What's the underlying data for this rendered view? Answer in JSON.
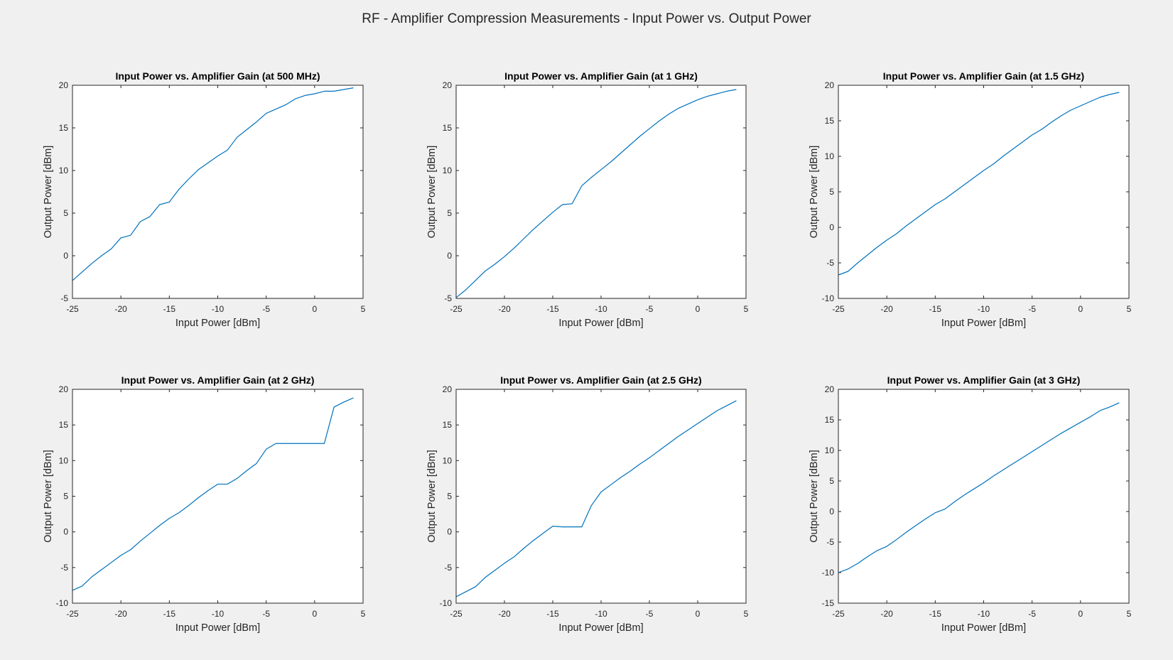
{
  "figure": {
    "suptitle": "RF - Amplifier Compression Measurements - Input Power vs. Output Power",
    "line_color": "#0072BD"
  },
  "chart_data": [
    {
      "type": "line",
      "title": "Input Power vs. Amplifier Gain (at 500 MHz)",
      "xlabel": "Input Power [dBm]",
      "ylabel": "Output Power [dBm]",
      "xlim": [
        -25,
        5
      ],
      "ylim": [
        -5,
        20
      ],
      "xticks": [
        -25,
        -20,
        -15,
        -10,
        -5,
        0,
        5
      ],
      "yticks": [
        -5,
        0,
        5,
        10,
        15,
        20
      ],
      "x": [
        -25,
        -24,
        -23,
        -22,
        -21,
        -20,
        -19,
        -18,
        -17,
        -16,
        -15,
        -14,
        -13,
        -12,
        -11,
        -10,
        -9,
        -8,
        -7,
        -6,
        -5,
        -4,
        -3,
        -2,
        -1,
        0,
        1,
        2,
        3,
        4
      ],
      "y": [
        -2.9,
        -1.9,
        -0.9,
        0.0,
        0.8,
        2.1,
        2.4,
        4.0,
        4.6,
        6.0,
        6.3,
        7.8,
        9.0,
        10.1,
        10.9,
        11.7,
        12.4,
        13.9,
        14.8,
        15.7,
        16.7,
        17.2,
        17.7,
        18.4,
        18.8,
        19.0,
        19.3,
        19.3,
        19.5,
        19.7
      ]
    },
    {
      "type": "line",
      "title": "Input Power vs. Amplifier Gain (at 1 GHz)",
      "xlabel": "Input Power [dBm]",
      "ylabel": "Output Power [dBm]",
      "xlim": [
        -25,
        5
      ],
      "ylim": [
        -5,
        20
      ],
      "xticks": [
        -25,
        -20,
        -15,
        -10,
        -5,
        0,
        5
      ],
      "yticks": [
        -5,
        0,
        5,
        10,
        15,
        20
      ],
      "x": [
        -25,
        -24,
        -23,
        -22,
        -21,
        -20,
        -19,
        -18,
        -17,
        -16,
        -15,
        -14,
        -13,
        -12,
        -11,
        -10,
        -9,
        -8,
        -7,
        -6,
        -5,
        -4,
        -3,
        -2,
        -1,
        0,
        1,
        2,
        3,
        4
      ],
      "y": [
        -4.9,
        -4.0,
        -2.9,
        -1.8,
        -1.0,
        -0.1,
        0.9,
        2.0,
        3.1,
        4.1,
        5.1,
        6.0,
        6.1,
        8.2,
        9.2,
        10.1,
        11.0,
        12.0,
        13.0,
        14.0,
        14.9,
        15.8,
        16.6,
        17.3,
        17.8,
        18.3,
        18.7,
        19.0,
        19.3,
        19.5
      ]
    },
    {
      "type": "line",
      "title": "Input Power vs. Amplifier Gain (at 1.5 GHz)",
      "xlabel": "Input Power [dBm]",
      "ylabel": "Output Power [dBm]",
      "xlim": [
        -25,
        5
      ],
      "ylim": [
        -10,
        20
      ],
      "xticks": [
        -25,
        -20,
        -15,
        -10,
        -5,
        0,
        5
      ],
      "yticks": [
        -10,
        -5,
        0,
        5,
        10,
        15,
        20
      ],
      "x": [
        -25,
        -24,
        -23,
        -22,
        -21,
        -20,
        -19,
        -18,
        -17,
        -16,
        -15,
        -14,
        -13,
        -12,
        -11,
        -10,
        -9,
        -8,
        -7,
        -6,
        -5,
        -4,
        -3,
        -2,
        -1,
        0,
        1,
        2,
        3,
        4
      ],
      "y": [
        -6.7,
        -6.2,
        -5.0,
        -3.9,
        -2.8,
        -1.8,
        -0.9,
        0.2,
        1.2,
        2.2,
        3.2,
        4.0,
        5.0,
        6.0,
        7.0,
        8.0,
        8.9,
        10.0,
        11.0,
        12.0,
        13.0,
        13.8,
        14.8,
        15.7,
        16.5,
        17.1,
        17.7,
        18.3,
        18.7,
        19.0
      ]
    },
    {
      "type": "line",
      "title": "Input Power vs. Amplifier Gain (at 2 GHz)",
      "xlabel": "Input Power [dBm]",
      "ylabel": "Output Power [dBm]",
      "xlim": [
        -25,
        5
      ],
      "ylim": [
        -10,
        20
      ],
      "xticks": [
        -25,
        -20,
        -15,
        -10,
        -5,
        0,
        5
      ],
      "yticks": [
        -10,
        -5,
        0,
        5,
        10,
        15,
        20
      ],
      "x": [
        -25,
        -24,
        -23,
        -22,
        -21,
        -20,
        -19,
        -18,
        -17,
        -16,
        -15,
        -14,
        -13,
        -12,
        -11,
        -10,
        -9,
        -8,
        -7,
        -6,
        -5,
        -4,
        -3,
        -2,
        -1,
        0,
        1,
        2,
        3,
        4
      ],
      "y": [
        -8.2,
        -7.6,
        -6.3,
        -5.3,
        -4.3,
        -3.3,
        -2.5,
        -1.3,
        -0.2,
        0.9,
        1.9,
        2.7,
        3.7,
        4.8,
        5.8,
        6.7,
        6.7,
        7.5,
        8.6,
        9.6,
        11.6,
        12.4,
        12.4,
        12.4,
        12.4,
        12.4,
        12.4,
        17.5,
        18.2,
        18.8
      ]
    },
    {
      "type": "line",
      "title": "Input Power vs. Amplifier Gain (at 2.5 GHz)",
      "xlabel": "Input Power [dBm]",
      "ylabel": "Output Power [dBm]",
      "xlim": [
        -25,
        5
      ],
      "ylim": [
        -10,
        20
      ],
      "xticks": [
        -25,
        -20,
        -15,
        -10,
        -5,
        0,
        5
      ],
      "yticks": [
        -10,
        -5,
        0,
        5,
        10,
        15,
        20
      ],
      "x": [
        -25,
        -24,
        -23,
        -22,
        -21,
        -20,
        -19,
        -18,
        -17,
        -16,
        -15,
        -14,
        -13,
        -12,
        -11,
        -10,
        -9,
        -8,
        -7,
        -6,
        -5,
        -4,
        -3,
        -2,
        -1,
        0,
        1,
        2,
        3,
        4
      ],
      "y": [
        -9.1,
        -8.4,
        -7.7,
        -6.4,
        -5.4,
        -4.4,
        -3.5,
        -2.3,
        -1.2,
        -0.2,
        0.8,
        0.7,
        0.7,
        0.7,
        3.7,
        5.6,
        6.6,
        7.6,
        8.5,
        9.5,
        10.4,
        11.4,
        12.4,
        13.4,
        14.3,
        15.2,
        16.1,
        17.0,
        17.7,
        18.4
      ]
    },
    {
      "type": "line",
      "title": "Input Power vs. Amplifier Gain (at 3 GHz)",
      "xlabel": "Input Power [dBm]",
      "ylabel": "Output Power [dBm]",
      "xlim": [
        -25,
        5
      ],
      "ylim": [
        -15,
        20
      ],
      "xticks": [
        -25,
        -20,
        -15,
        -10,
        -5,
        0,
        5
      ],
      "yticks": [
        -15,
        -10,
        -5,
        0,
        5,
        10,
        15,
        20
      ],
      "x": [
        -25,
        -24,
        -23,
        -22,
        -21,
        -20,
        -19,
        -18,
        -17,
        -16,
        -15,
        -14,
        -13,
        -12,
        -11,
        -10,
        -9,
        -8,
        -7,
        -6,
        -5,
        -4,
        -3,
        -2,
        -1,
        0,
        1,
        2,
        3,
        4
      ],
      "y": [
        -10.0,
        -9.4,
        -8.5,
        -7.4,
        -6.4,
        -5.7,
        -4.6,
        -3.4,
        -2.3,
        -1.2,
        -0.2,
        0.4,
        1.6,
        2.7,
        3.7,
        4.7,
        5.8,
        6.8,
        7.8,
        8.8,
        9.8,
        10.8,
        11.8,
        12.8,
        13.7,
        14.6,
        15.5,
        16.5,
        17.1,
        17.8
      ]
    }
  ]
}
